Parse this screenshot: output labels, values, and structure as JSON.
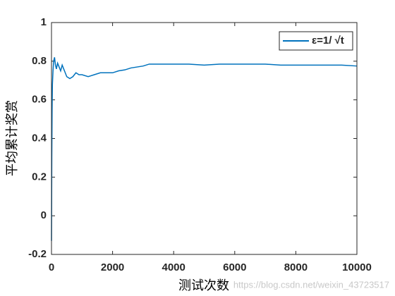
{
  "chart_data": {
    "type": "line",
    "xlabel": "测试次数",
    "ylabel": "平均累计奖赏",
    "x": [
      0,
      10,
      20,
      30,
      50,
      70,
      100,
      130,
      160,
      200,
      250,
      300,
      350,
      400,
      450,
      500,
      600,
      700,
      800,
      900,
      1000,
      1200,
      1400,
      1600,
      1800,
      2000,
      2200,
      2400,
      2600,
      2800,
      3000,
      3200,
      3500,
      4000,
      4500,
      5000,
      5500,
      6000,
      6500,
      7000,
      7500,
      8000,
      8500,
      9000,
      9500,
      10000
    ],
    "series": [
      {
        "name": "ε=1/ √t",
        "color": "#0072bd",
        "values": [
          -0.13,
          0.3,
          0.55,
          0.68,
          0.75,
          0.8,
          0.82,
          0.78,
          0.76,
          0.79,
          0.77,
          0.75,
          0.78,
          0.76,
          0.74,
          0.72,
          0.71,
          0.72,
          0.74,
          0.73,
          0.73,
          0.72,
          0.73,
          0.74,
          0.74,
          0.74,
          0.75,
          0.755,
          0.765,
          0.77,
          0.775,
          0.785,
          0.785,
          0.785,
          0.785,
          0.78,
          0.785,
          0.785,
          0.785,
          0.785,
          0.78,
          0.78,
          0.78,
          0.78,
          0.78,
          0.775
        ]
      }
    ],
    "xlim": [
      0,
      10000
    ],
    "xticks": [
      0,
      2000,
      4000,
      6000,
      8000,
      10000
    ],
    "ylim": [
      -0.2,
      1
    ],
    "yticks": [
      -0.2,
      0,
      0.2,
      0.4,
      0.6,
      0.8,
      1
    ],
    "legend": "upper right",
    "watermark": "https://blog.csdn.net/weixin_43723517"
  }
}
